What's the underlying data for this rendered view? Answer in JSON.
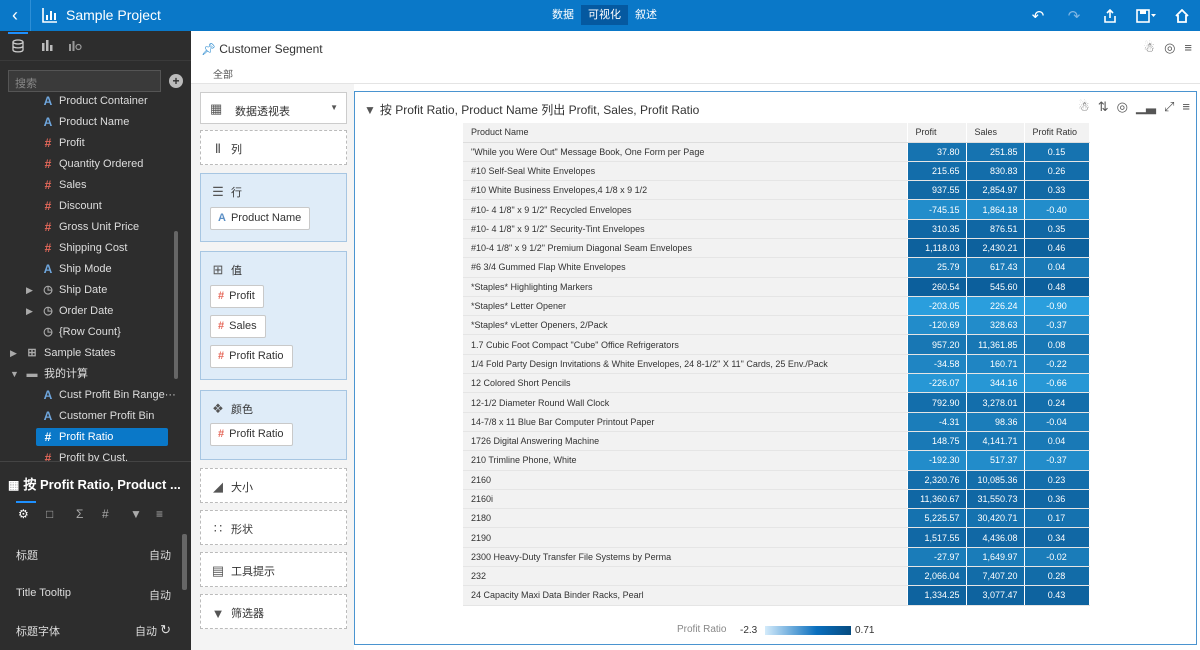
{
  "app": {
    "title": "Sample Project",
    "tabs": [
      {
        "label": "数据",
        "active": false
      },
      {
        "label": "可视化",
        "active": true
      },
      {
        "label": "叙述",
        "active": false
      }
    ],
    "right_icons": [
      "undo-icon",
      "redo-icon",
      "share-icon",
      "save-icon",
      "home-icon"
    ]
  },
  "left_panel": {
    "tab_icons": [
      "database-icon",
      "bar-chart-icon",
      "chart-settings-icon"
    ],
    "search_placeholder": "搜索",
    "fields": [
      {
        "type": "a",
        "label": "Product Container",
        "level": 2
      },
      {
        "type": "a",
        "label": "Product Name",
        "level": 2
      },
      {
        "type": "n",
        "label": "Profit",
        "level": 2
      },
      {
        "type": "n",
        "label": "Quantity Ordered",
        "level": 2
      },
      {
        "type": "n",
        "label": "Sales",
        "level": 2
      },
      {
        "type": "n",
        "label": "Discount",
        "level": 2
      },
      {
        "type": "n",
        "label": "Gross Unit Price",
        "level": 2
      },
      {
        "type": "n",
        "label": "Shipping Cost",
        "level": 2
      },
      {
        "type": "a",
        "label": "Ship Mode",
        "level": 2
      },
      {
        "type": "c",
        "label": "Ship Date",
        "level": 2,
        "expandable": true
      },
      {
        "type": "c",
        "label": "Order Date",
        "level": 2,
        "expandable": true
      },
      {
        "type": "c",
        "label": "{Row Count}",
        "level": 2
      },
      {
        "type": "t",
        "label": "Sample States",
        "level": 1,
        "expandable": true
      },
      {
        "type": "f",
        "label": "我的计算",
        "level": 1,
        "expanded": true
      },
      {
        "type": "a",
        "label": "Cust Profit Bin Range···",
        "level": 2
      },
      {
        "type": "a",
        "label": "Customer Profit Bin",
        "level": 2
      },
      {
        "type": "n",
        "label": "Profit Ratio",
        "level": 2,
        "selected": true
      },
      {
        "type": "n",
        "label": "Profit by Cust.",
        "level": 2
      }
    ]
  },
  "bottom_panel": {
    "title": "按 Profit Ratio, Product ...",
    "tab_icons": [
      "settings-icon",
      "layout-icon",
      "sigma-icon",
      "hash-icon",
      "filter-icon",
      "analytics-icon"
    ],
    "rows": [
      {
        "label": "标题",
        "value": "自动"
      },
      {
        "label": "Title Tooltip",
        "value": "自动"
      },
      {
        "label": "标题字体",
        "value": "自动"
      }
    ]
  },
  "filter": {
    "title": "Customer Segment",
    "value": "全部"
  },
  "shelves": {
    "chart_type": "数据透视表",
    "columns_label": "列",
    "rows_label": "行",
    "rows_pills": [
      {
        "type": "a",
        "label": "Product Name"
      }
    ],
    "values_label": "值",
    "values_pills": [
      {
        "type": "n",
        "label": "Profit"
      },
      {
        "type": "n",
        "label": "Sales"
      },
      {
        "type": "n",
        "label": "Profit Ratio"
      }
    ],
    "color_label": "颜色",
    "color_pills": [
      {
        "type": "n",
        "label": "Profit Ratio"
      }
    ],
    "size_label": "大小",
    "shape_label": "形状",
    "tooltip_label": "工具提示",
    "filter_label": "筛选器"
  },
  "viz": {
    "title": "按 Profit Ratio, Product Name 列出 Profit, Sales, Profit Ratio",
    "legend": {
      "title": "Profit Ratio",
      "min": "-2.3",
      "max": "0.71"
    }
  },
  "colors": {
    "accent": "#0a78c8",
    "topbar": "#0a78c8",
    "panel_dark": "#2d2d2d",
    "cell_dark": "#055ea3",
    "cell_light": "#33b0ef"
  },
  "chart_data": {
    "type": "table",
    "columns": [
      "Product Name",
      "Profit",
      "Sales",
      "Profit Ratio"
    ],
    "rows": [
      [
        "\"While you Were Out\" Message Book, One Form per Page",
        "37.80",
        "251.85",
        "0.15"
      ],
      [
        "#10 Self-Seal White Envelopes",
        "215.65",
        "830.83",
        "0.26"
      ],
      [
        "#10 White Business Envelopes,4 1/8 x 9 1/2",
        "937.55",
        "2,854.97",
        "0.33"
      ],
      [
        "#10- 4 1/8\" x 9 1/2\" Recycled Envelopes",
        "-745.15",
        "1,864.18",
        "-0.40"
      ],
      [
        "#10- 4 1/8\" x 9 1/2\" Security-Tint Envelopes",
        "310.35",
        "876.51",
        "0.35"
      ],
      [
        "#10-4 1/8\" x 9 1/2\" Premium Diagonal Seam Envelopes",
        "1,118.03",
        "2,430.21",
        "0.46"
      ],
      [
        "#6 3/4 Gummed Flap White Envelopes",
        "25.79",
        "617.43",
        "0.04"
      ],
      [
        "*Staples* Highlighting Markers",
        "260.54",
        "545.60",
        "0.48"
      ],
      [
        "*Staples* Letter Opener",
        "-203.05",
        "226.24",
        "-0.90"
      ],
      [
        "*Staples* vLetter Openers, 2/Pack",
        "-120.69",
        "328.63",
        "-0.37"
      ],
      [
        "1.7 Cubic Foot Compact \"Cube\" Office Refrigerators",
        "957.20",
        "11,361.85",
        "0.08"
      ],
      [
        "1/4 Fold Party Design Invitations & White Envelopes, 24 8-1/2\" X 11\" Cards, 25 Env./Pack",
        "-34.58",
        "160.71",
        "-0.22"
      ],
      [
        "12 Colored Short Pencils",
        "-226.07",
        "344.16",
        "-0.66"
      ],
      [
        "12-1/2 Diameter Round Wall Clock",
        "792.90",
        "3,278.01",
        "0.24"
      ],
      [
        "14-7/8 x 11 Blue Bar Computer Printout Paper",
        "-4.31",
        "98.36",
        "-0.04"
      ],
      [
        "1726 Digital Answering Machine",
        "148.75",
        "4,141.71",
        "0.04"
      ],
      [
        "210 Trimline Phone, White",
        "-192.30",
        "517.37",
        "-0.37"
      ],
      [
        "2160",
        "2,320.76",
        "10,085.36",
        "0.23"
      ],
      [
        "2160i",
        "11,360.67",
        "31,550.73",
        "0.36"
      ],
      [
        "2180",
        "5,225.57",
        "30,420.71",
        "0.17"
      ],
      [
        "2190",
        "1,517.55",
        "4,436.08",
        "0.34"
      ],
      [
        "2300 Heavy-Duty Transfer File Systems by Perma",
        "-27.97",
        "1,649.97",
        "-0.02"
      ],
      [
        "232",
        "2,066.04",
        "7,407.20",
        "0.28"
      ],
      [
        "24 Capacity Maxi Data Binder Racks, Pearl",
        "1,334.25",
        "3,077.47",
        "0.43"
      ]
    ],
    "color_by": "Profit Ratio",
    "color_range": [
      -2.3,
      0.71
    ]
  }
}
